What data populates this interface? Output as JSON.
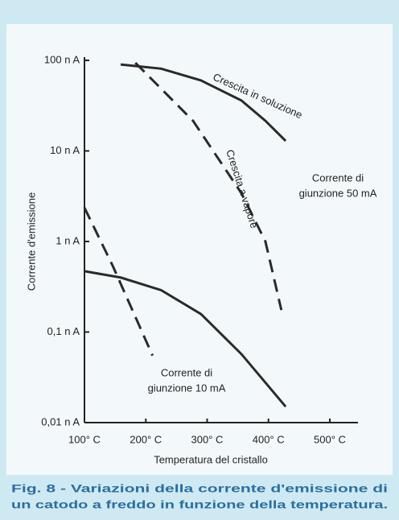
{
  "chart_data": {
    "type": "line",
    "ylabel": "Corrente d'emissione",
    "xlabel": "Temperatura del cristallo",
    "log_y": true,
    "xlim": [
      100,
      500
    ],
    "ylim": [
      0.01,
      100
    ],
    "xticks": [
      {
        "value": 100,
        "label": "100° C"
      },
      {
        "value": 200,
        "label": "200° C"
      },
      {
        "value": 300,
        "label": "300° C"
      },
      {
        "value": 400,
        "label": "400° C"
      },
      {
        "value": 500,
        "label": "500° C"
      }
    ],
    "yticks": [
      {
        "value": 0.01,
        "label": "0,01 n A"
      },
      {
        "value": 0.1,
        "label": "0,1 n A"
      },
      {
        "value": 1,
        "label": "1 n A"
      },
      {
        "value": 10,
        "label": "10 n A"
      },
      {
        "value": 100,
        "label": "100 n A"
      }
    ],
    "series": [
      {
        "name": "Crescita in soluzione",
        "color": "#2a2a2a",
        "style": "solid",
        "x": [
          159,
          225,
          290,
          356,
          395,
          428
        ],
        "values": [
          90,
          81,
          60,
          36,
          21.5,
          12.9
        ]
      },
      {
        "name": "Crescita a vapore",
        "color": "#2a2a2a",
        "style": "dashed",
        "x": [
          183,
          277,
          356,
          395,
          421
        ],
        "values": [
          94,
          21.5,
          3.4,
          1,
          0.175
        ]
      },
      {
        "color": "#2a2a2a",
        "style": "solid",
        "x": [
          100,
          159,
          225,
          290,
          356,
          428
        ],
        "values": [
          0.47,
          0.4,
          0.29,
          0.158,
          0.057,
          0.015
        ]
      },
      {
        "color": "#2a2a2a",
        "style": "dashed",
        "x": [
          100,
          146,
          211
        ],
        "values": [
          2.36,
          0.54,
          0.055
        ]
      }
    ],
    "annotations": [
      {
        "lines": [
          "Corrente di",
          "giunzione 50 mA"
        ]
      },
      {
        "lines": [
          "Corrente di",
          "giunzione 10 mA"
        ]
      }
    ],
    "caption": [
      "Fig. 8 - Variazioni della corrente d'emissione di",
      "un catodo a freddo in funzione della temperatura."
    ]
  }
}
